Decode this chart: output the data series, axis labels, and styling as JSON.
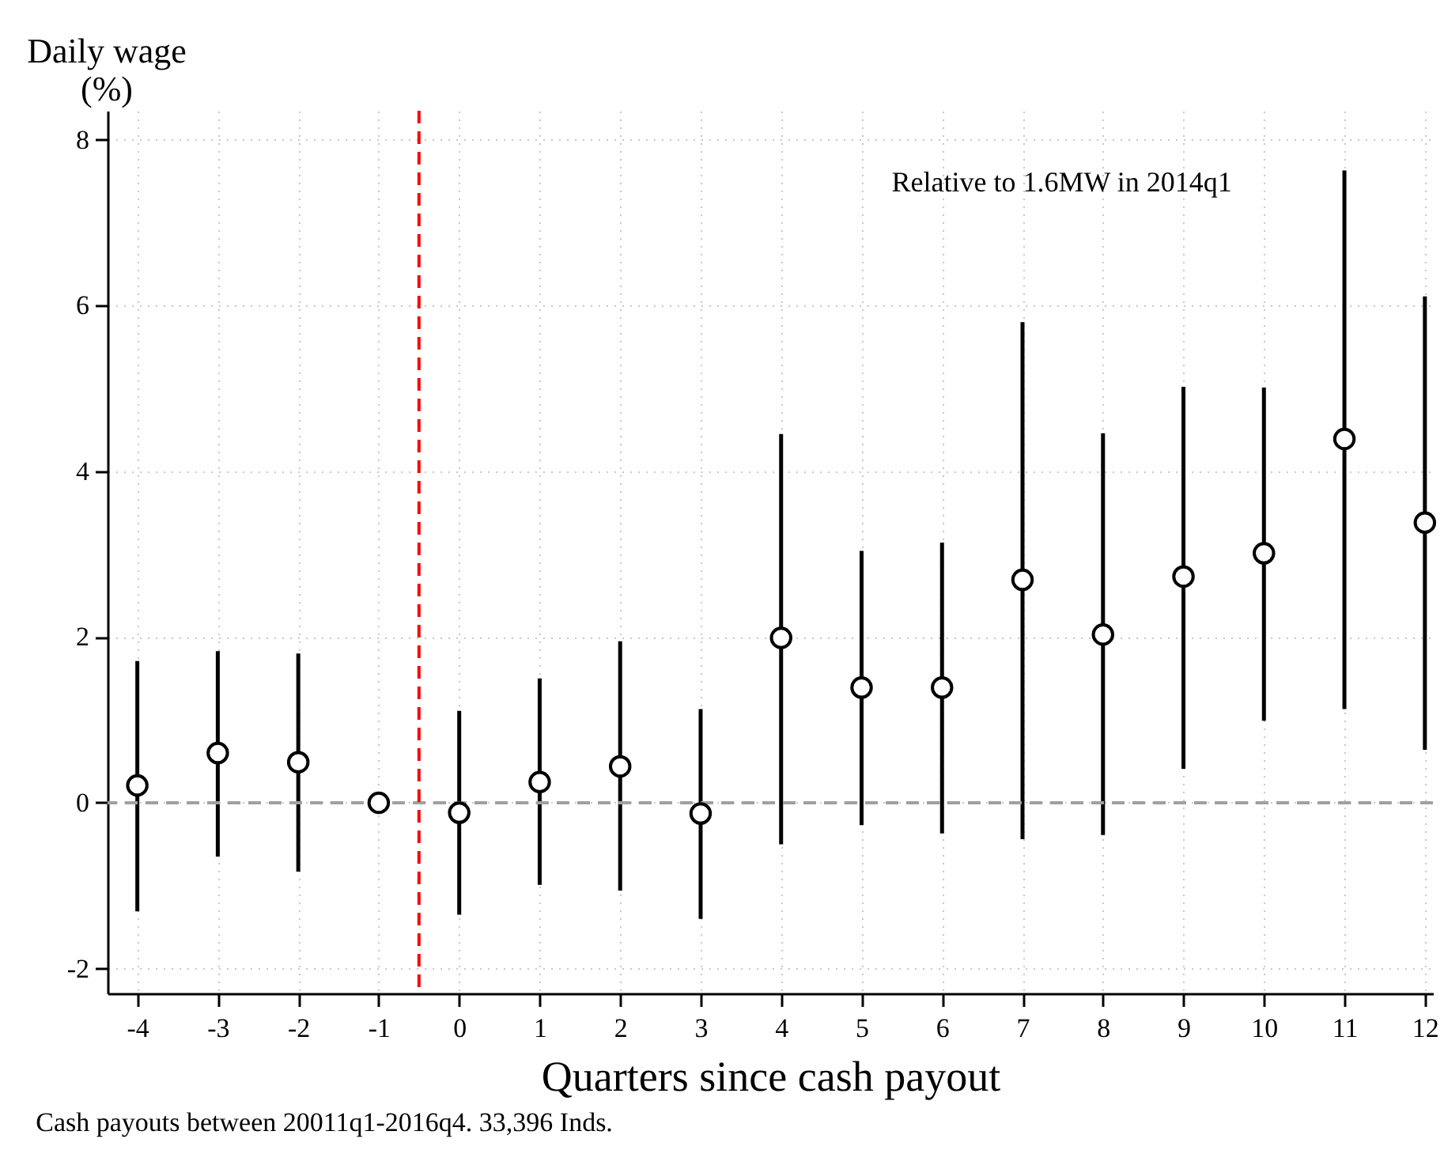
{
  "chart_data": {
    "type": "scatter",
    "ylabel": "Daily wage\n(%)",
    "xlabel": "Quarters since cash payout",
    "x": [
      -4,
      -3,
      -2,
      -1,
      0,
      1,
      2,
      3,
      4,
      5,
      6,
      7,
      8,
      9,
      10,
      11,
      12
    ],
    "series": [
      {
        "color": "#000000",
        "values": [
          0.21,
          0.6,
          0.49,
          0,
          -0.12,
          0.25,
          0.44,
          -0.13,
          1.99,
          1.39,
          1.39,
          2.69,
          2.03,
          2.73,
          3.01,
          4.39,
          3.38
        ],
        "errors": [
          [
            -1.31,
            1.71
          ],
          [
            -0.65,
            1.83
          ],
          [
            -0.83,
            1.8
          ],
          null,
          [
            -1.35,
            1.11
          ],
          [
            -0.99,
            1.5
          ],
          [
            -1.06,
            1.95
          ],
          [
            -1.4,
            1.13
          ],
          [
            -0.5,
            4.45
          ],
          [
            -0.27,
            3.04
          ],
          [
            -0.37,
            3.14
          ],
          [
            -0.44,
            5.8
          ],
          [
            -0.39,
            4.46
          ],
          [
            0.41,
            5.02
          ],
          [
            0.99,
            5.01
          ],
          [
            1.13,
            7.63
          ],
          [
            0.64,
            6.11
          ]
        ]
      }
    ],
    "xlim": [
      -4.37,
      12.1
    ],
    "xticks": [
      -4,
      -3,
      -2,
      -1,
      0,
      1,
      2,
      3,
      4,
      5,
      6,
      7,
      8,
      9,
      10,
      11,
      12
    ],
    "ylim": [
      -2.3,
      8.35
    ],
    "yticks": [
      -2,
      0,
      2,
      4,
      6,
      8
    ],
    "ref_lines": [
      {
        "axis": "x",
        "value": -0.5,
        "color": "#ff0000",
        "line_style": "dashed"
      },
      {
        "axis": "y",
        "value": 0,
        "color": "#a0a0a0",
        "line_style": "dashed"
      }
    ],
    "annotations": [
      "Relative to 1.6MW in 2014q1",
      "Cash payouts between 20011q1-2016q4. 33,396 Inds."
    ],
    "grid": true,
    "marker": "circle"
  }
}
